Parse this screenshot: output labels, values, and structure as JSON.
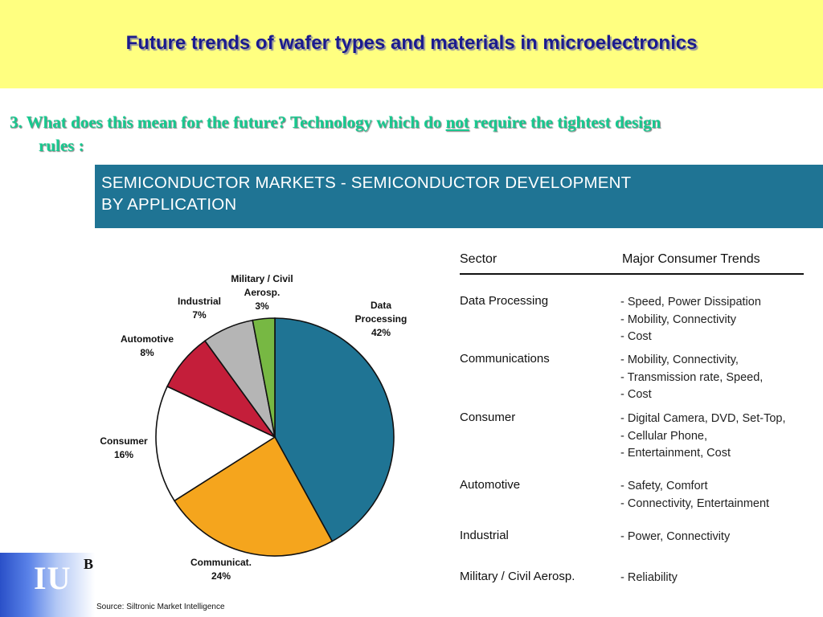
{
  "title": "Future trends of wafer types and materials in microelectronics",
  "question": {
    "before": "3. What does this mean for the future? Technology which do ",
    "emphasis": "not",
    "after": " require the tightest design",
    "line2": "rules :"
  },
  "banner": {
    "line1": "SEMICONDUCTOR MARKETS - SEMICONDUCTOR DEVELOPMENT",
    "line2": "BY  APPLICATION"
  },
  "chart_data": {
    "type": "pie",
    "start_angle_deg": 0,
    "direction": "clockwise",
    "slices": [
      {
        "label": [
          "Data",
          "Processing"
        ],
        "pct_text": "42%",
        "value": 42,
        "color": "#1f7494"
      },
      {
        "label": [
          "Communicat."
        ],
        "pct_text": "24%",
        "value": 24,
        "color": "#f5a51d"
      },
      {
        "label": [
          "Consumer"
        ],
        "pct_text": "16%",
        "value": 16,
        "color": "#ffffff"
      },
      {
        "label": [
          "Automotive"
        ],
        "pct_text": "8%",
        "value": 8,
        "color": "#c41e3a"
      },
      {
        "label": [
          "Industrial"
        ],
        "pct_text": "7%",
        "value": 7,
        "color": "#b5b5b5"
      },
      {
        "label": [
          "Military / Civil",
          "Aerosp."
        ],
        "pct_text": "3%",
        "value": 3,
        "color": "#77b843"
      }
    ]
  },
  "table": {
    "headers": {
      "sector": "Sector",
      "trends": "Major Consumer Trends"
    },
    "rows": [
      {
        "sector": "Data Processing",
        "trends": [
          "- Speed, Power Dissipation",
          "- Mobility, Connectivity",
          "- Cost"
        ]
      },
      {
        "sector": "Communications",
        "trends": [
          "- Mobility, Connectivity,",
          "- Transmission rate, Speed,",
          "- Cost"
        ]
      },
      {
        "sector": "Consumer",
        "trends": [
          "- Digital Camera, DVD, Set-Top,",
          "- Cellular Phone,",
          "- Entertainment, Cost"
        ]
      },
      {
        "sector": "Automotive",
        "trends": [
          "- Safety, Comfort",
          "- Connectivity, Entertainment"
        ]
      },
      {
        "sector": "Industrial",
        "trends": [
          "- Power, Connectivity"
        ]
      },
      {
        "sector": "Military / Civil Aerosp.",
        "trends": [
          "- Reliability"
        ]
      }
    ]
  },
  "logo": {
    "text": "IU",
    "sup": "B"
  },
  "source": "Source: Siltronic Market Intelligence"
}
